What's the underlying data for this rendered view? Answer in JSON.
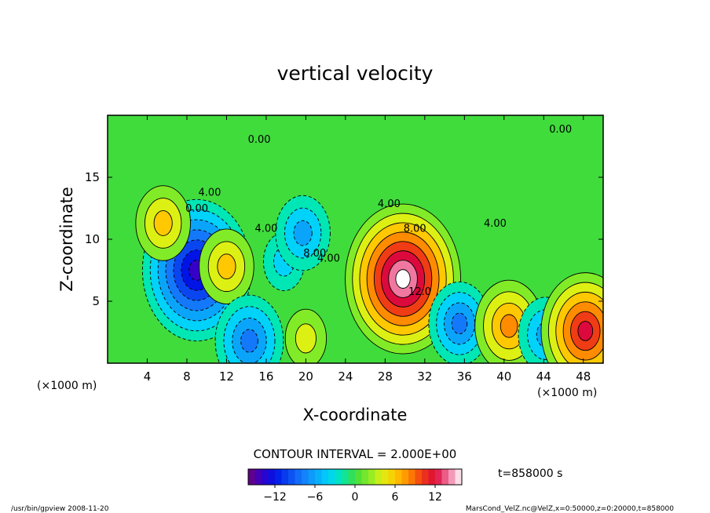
{
  "chart_data": {
    "type": "heatmap",
    "title": "vertical velocity",
    "xlabel": "X-coordinate",
    "ylabel": "Z-coordinate",
    "x_unit_left": "(×1000 m)",
    "x_unit_right": "(×1000 m)",
    "xlim": [
      0,
      50
    ],
    "ylim": [
      0,
      20
    ],
    "x_ticks": [
      4,
      8,
      12,
      16,
      20,
      24,
      28,
      32,
      36,
      40,
      44,
      48
    ],
    "y_ticks": [
      5,
      10,
      15
    ],
    "contour_interval_text": "CONTOUR INTERVAL = 2.000E+00",
    "time_text": "t=858000 s",
    "colorbar": {
      "range": [
        -16,
        16
      ],
      "ticks": [
        -12,
        -6,
        0,
        6,
        12
      ],
      "tick_labels": [
        "−12",
        "−6",
        "0",
        "6",
        "12"
      ]
    },
    "contour_labels": [
      {
        "text": "0.00",
        "x": 15.3,
        "y": 17.8
      },
      {
        "text": "0.00",
        "x": 45.7,
        "y": 18.6
      },
      {
        "text": "4.00",
        "x": 10.3,
        "y": 13.5
      },
      {
        "text": "0.00",
        "x": 9.0,
        "y": 12.2
      },
      {
        "text": "4.00",
        "x": 16.0,
        "y": 10.6
      },
      {
        "text": "8.00",
        "x": 20.9,
        "y": 8.6
      },
      {
        "text": "4.00",
        "x": 22.3,
        "y": 8.2
      },
      {
        "text": "4.00",
        "x": 28.4,
        "y": 12.6
      },
      {
        "text": "8.00",
        "x": 31.0,
        "y": 10.6
      },
      {
        "text": "12.0",
        "x": 31.5,
        "y": 5.5
      },
      {
        "text": "4.00",
        "x": 39.1,
        "y": 11.0
      }
    ],
    "features": [
      {
        "x": 9.0,
        "y": 7.5,
        "value": -14
      },
      {
        "x": 5.6,
        "y": 11.3,
        "value": 6
      },
      {
        "x": 12.0,
        "y": 7.8,
        "value": 6
      },
      {
        "x": 14.3,
        "y": 1.8,
        "value": -8
      },
      {
        "x": 17.8,
        "y": 8.2,
        "value": -4
      },
      {
        "x": 19.7,
        "y": 10.5,
        "value": -6
      },
      {
        "x": 20.0,
        "y": 2.0,
        "value": 4
      },
      {
        "x": 29.8,
        "y": 6.8,
        "value": 15
      },
      {
        "x": 35.5,
        "y": 3.2,
        "value": -7
      },
      {
        "x": 40.5,
        "y": 3.0,
        "value": 8
      },
      {
        "x": 44.2,
        "y": 2.3,
        "value": -6
      },
      {
        "x": 48.2,
        "y": 2.6,
        "value": 11
      }
    ]
  },
  "footer": {
    "left": "/usr/bin/gpview   2008-11-20",
    "right": "MarsCond_VelZ.nc@VelZ,x=0:50000,z=0:20000,t=858000"
  }
}
